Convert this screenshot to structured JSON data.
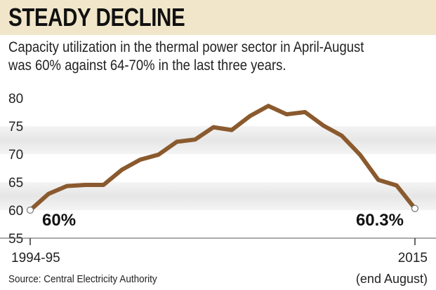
{
  "chart_data": {
    "type": "line",
    "title": "STEADY DECLINE",
    "subtitle_lines": [
      "Capacity utilization in the thermal power sector in April-August",
      "was 60% against 64-70% in the last three years."
    ],
    "x_start_label": "1994-95",
    "x_end_label": "2015",
    "x_end_note": "(end August)",
    "y_ticks": [
      "80",
      "75",
      "70",
      "65",
      "60",
      "55"
    ],
    "ylim": [
      55,
      80
    ],
    "grid": "alternating horizontal bands",
    "series": [
      {
        "color": "#8a5a2e",
        "values": [
          60.0,
          62.9,
          64.3,
          64.5,
          64.5,
          67.2,
          69.0,
          69.9,
          72.2,
          72.6,
          74.8,
          74.3,
          76.8,
          78.6,
          77.1,
          77.5,
          75.1,
          73.3,
          69.9,
          65.4,
          64.4,
          60.3
        ]
      }
    ],
    "annotations": {
      "start": "60%",
      "end": "60.3%"
    },
    "source": "Source: Central Electricity Authority"
  }
}
